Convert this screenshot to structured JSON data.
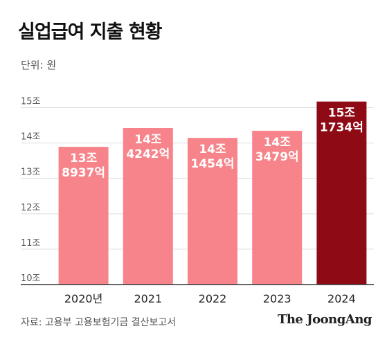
{
  "title": "실업급여 지출 현황",
  "unit_label": "단위: 원",
  "source": "자료: 고용부 고용보험기금 결산보고서",
  "brand": "The JoongAng",
  "colors": {
    "bar": "#f7848a",
    "highlight": "#8e0a15",
    "grid": "#dddddd",
    "axis": "#333333",
    "label": "#ffffff"
  },
  "chart_data": {
    "type": "bar",
    "title": "실업급여 지출 현황",
    "unit": "단위: 원",
    "categories": [
      "2020년",
      "2021",
      "2022",
      "2023",
      "2024"
    ],
    "values": [
      138937,
      144242,
      141454,
      143479,
      151734
    ],
    "value_units": "억 원",
    "data_labels": [
      [
        "13조",
        "8937억"
      ],
      [
        "14조",
        "4242억"
      ],
      [
        "14조",
        "1454억"
      ],
      [
        "14조",
        "3479억"
      ],
      [
        "15조",
        "1734억"
      ]
    ],
    "highlight_index": 4,
    "y_ticks": [
      100000,
      110000,
      120000,
      130000,
      140000,
      150000
    ],
    "y_tick_labels": [
      "10조",
      "11조",
      "12조",
      "13조",
      "14조",
      "15조"
    ],
    "ylim": [
      100000,
      155000
    ],
    "grid": true
  }
}
